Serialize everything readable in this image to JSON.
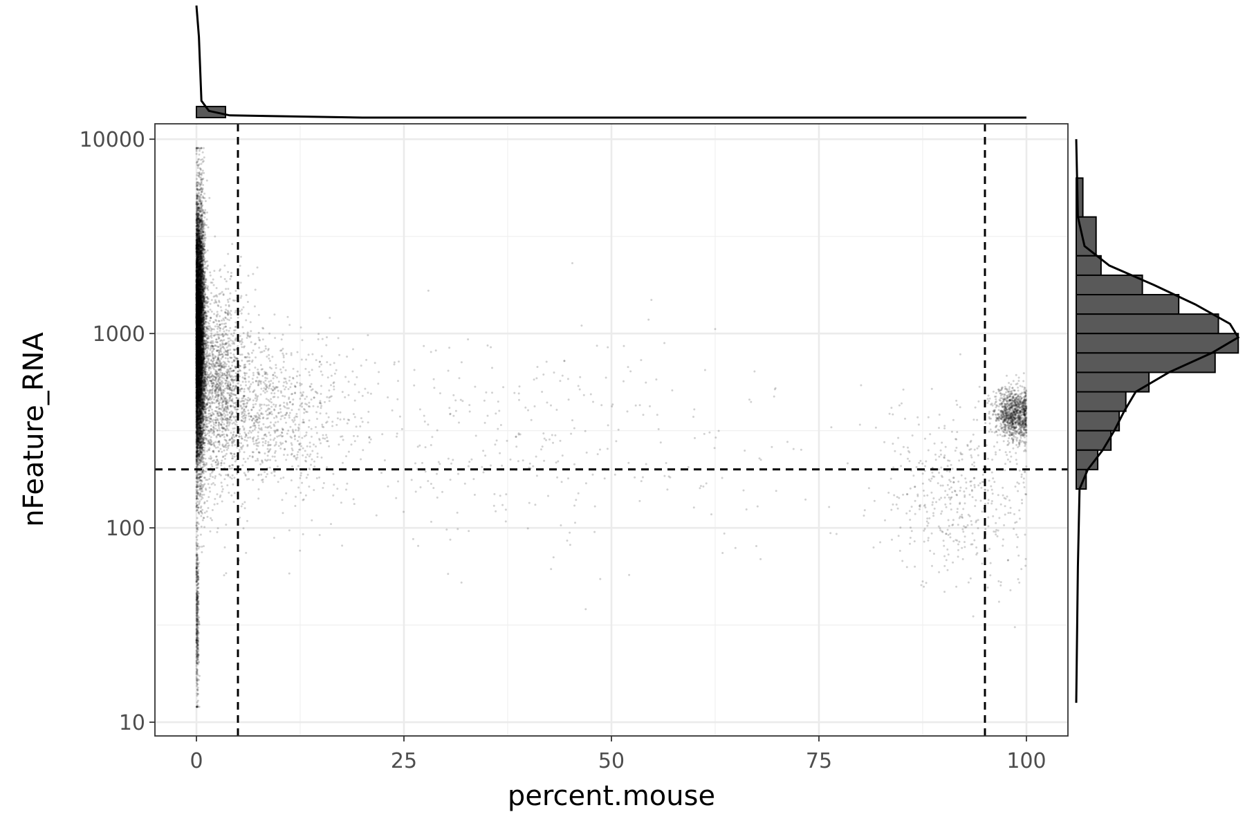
{
  "chart_data": {
    "type": "scatter",
    "title": "",
    "xlabel": "percent.mouse",
    "ylabel": "nFeature_RNA",
    "xlim": [
      -5,
      105
    ],
    "ylim": [
      8.5,
      12000
    ],
    "y_scale": "log10",
    "x_ticks": [
      0,
      25,
      50,
      75,
      100
    ],
    "x_tick_labels": [
      "0",
      "25",
      "50",
      "75",
      "100"
    ],
    "y_ticks": [
      10,
      100,
      1000,
      10000
    ],
    "y_tick_labels": [
      "10",
      "100",
      "1000",
      "10000"
    ],
    "grid": true,
    "legend": "none",
    "point_color": "#000000",
    "point_alpha": 0.18,
    "threshold_lines": {
      "vertical_x": [
        5,
        95
      ],
      "horizontal_y": [
        200
      ],
      "style": "dashed"
    },
    "clusters": [
      {
        "x_center": 0.3,
        "x_spread": 0.35,
        "log10y_center": 3.0,
        "log10y_spread": 0.32,
        "count": 9000
      },
      {
        "x_center": 2.5,
        "x_spread": 2.0,
        "log10y_center": 2.75,
        "log10y_spread": 0.25,
        "count": 1600
      },
      {
        "x_center": 8.0,
        "x_spread": 5.0,
        "log10y_center": 2.6,
        "log10y_spread": 0.18,
        "count": 900
      },
      {
        "x_center": 30.0,
        "x_spread": 22.0,
        "log10y_center": 2.45,
        "log10y_spread": 0.28,
        "count": 500
      },
      {
        "x_center": 98.5,
        "x_spread": 1.2,
        "log10y_center": 2.58,
        "log10y_spread": 0.07,
        "count": 1100
      },
      {
        "x_center": 92.0,
        "x_spread": 5.0,
        "log10y_center": 2.15,
        "log10y_spread": 0.22,
        "count": 450
      },
      {
        "x_center": 0.1,
        "x_spread": 0.1,
        "log10y_center": 1.55,
        "log10y_spread": 0.22,
        "count": 400
      }
    ],
    "marginal_x": {
      "histogram": [
        {
          "x0": 0,
          "x1": 3.5,
          "height": 1.0
        }
      ],
      "density": [
        [
          0,
          1.0
        ],
        [
          0.3,
          0.72
        ],
        [
          0.6,
          0.15
        ],
        [
          1.5,
          0.06
        ],
        [
          4,
          0.02
        ],
        [
          20,
          0.0
        ],
        [
          100,
          0.0
        ]
      ]
    },
    "marginal_y": {
      "histogram": [
        {
          "y0": 3.4,
          "y1": 3.6,
          "value": 0.12
        },
        {
          "y0": 3.6,
          "y1": 3.8,
          "value": 0.04
        },
        {
          "y0": 3.3,
          "y1": 3.4,
          "value": 0.15
        },
        {
          "y0": 3.2,
          "y1": 3.3,
          "value": 0.4
        },
        {
          "y0": 3.1,
          "y1": 3.2,
          "value": 0.62
        },
        {
          "y0": 3.0,
          "y1": 3.1,
          "value": 0.86
        },
        {
          "y0": 2.9,
          "y1": 3.0,
          "value": 0.98
        },
        {
          "y0": 2.8,
          "y1": 2.9,
          "value": 0.84
        },
        {
          "y0": 2.7,
          "y1": 2.8,
          "value": 0.44
        },
        {
          "y0": 2.6,
          "y1": 2.7,
          "value": 0.3
        },
        {
          "y0": 2.5,
          "y1": 2.6,
          "value": 0.26
        },
        {
          "y0": 2.4,
          "y1": 2.5,
          "value": 0.21
        },
        {
          "y0": 2.3,
          "y1": 2.4,
          "value": 0.13
        },
        {
          "y0": 2.2,
          "y1": 2.3,
          "value": 0.06
        }
      ],
      "density": [
        [
          1.1,
          0.0
        ],
        [
          1.8,
          0.01
        ],
        [
          2.2,
          0.02
        ],
        [
          2.3,
          0.07
        ],
        [
          2.4,
          0.16
        ],
        [
          2.5,
          0.23
        ],
        [
          2.6,
          0.29
        ],
        [
          2.7,
          0.36
        ],
        [
          2.8,
          0.56
        ],
        [
          2.9,
          0.82
        ],
        [
          2.98,
          0.98
        ],
        [
          3.05,
          0.93
        ],
        [
          3.15,
          0.72
        ],
        [
          3.25,
          0.47
        ],
        [
          3.35,
          0.2
        ],
        [
          3.45,
          0.05
        ],
        [
          3.6,
          0.01
        ],
        [
          4.0,
          0.0
        ]
      ]
    }
  }
}
